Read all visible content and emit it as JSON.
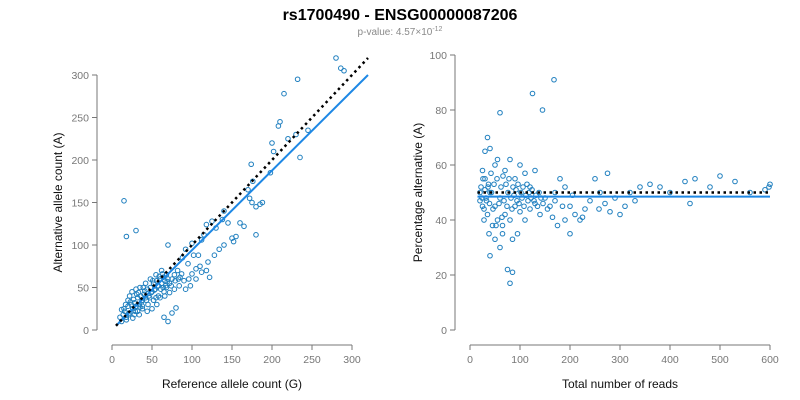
{
  "title": "rs1700490 - ENSG00000087206",
  "subtitle_prefix": "p-value: 4.57×10",
  "subtitle_exp": "-12",
  "colors": {
    "point": "#1f7fbf",
    "fit": "#1e88e5",
    "reference": "#000000"
  },
  "chart_data": [
    {
      "type": "scatter",
      "xlabel": "Reference allele count (G)",
      "ylabel": "Alternative allele count (A)",
      "xlim": [
        0,
        320
      ],
      "ylim": [
        0,
        300
      ],
      "xticks": [
        0,
        50,
        100,
        150,
        200,
        250,
        300
      ],
      "yticks": [
        0,
        50,
        100,
        150,
        200,
        250,
        300
      ],
      "fit_line": {
        "style": "solid",
        "points": [
          [
            5,
            5
          ],
          [
            320,
            300
          ]
        ]
      },
      "reference_line": {
        "style": "dotted",
        "points": [
          [
            5,
            5
          ],
          [
            320,
            320
          ]
        ]
      },
      "points": [
        [
          15,
          152
        ],
        [
          18,
          110
        ],
        [
          30,
          117
        ],
        [
          70,
          100
        ],
        [
          70,
          10
        ],
        [
          80,
          26
        ],
        [
          75,
          20
        ],
        [
          65,
          15
        ],
        [
          88,
          85
        ],
        [
          92,
          95
        ],
        [
          95,
          78
        ],
        [
          100,
          102
        ],
        [
          102,
          88
        ],
        [
          108,
          88
        ],
        [
          112,
          106
        ],
        [
          115,
          112
        ],
        [
          118,
          124
        ],
        [
          125,
          128
        ],
        [
          130,
          120
        ],
        [
          138,
          130
        ],
        [
          140,
          140
        ],
        [
          145,
          126
        ],
        [
          150,
          108
        ],
        [
          152,
          104
        ],
        [
          155,
          110
        ],
        [
          160,
          126
        ],
        [
          165,
          122
        ],
        [
          170,
          165
        ],
        [
          172,
          155
        ],
        [
          174,
          195
        ],
        [
          175,
          150
        ],
        [
          176,
          175
        ],
        [
          180,
          145
        ],
        [
          185,
          148
        ],
        [
          188,
          150
        ],
        [
          180,
          112
        ],
        [
          198,
          185
        ],
        [
          200,
          220
        ],
        [
          202,
          210
        ],
        [
          208,
          240
        ],
        [
          210,
          245
        ],
        [
          215,
          278
        ],
        [
          220,
          225
        ],
        [
          230,
          230
        ],
        [
          232,
          295
        ],
        [
          235,
          203
        ],
        [
          245,
          235
        ],
        [
          280,
          320
        ],
        [
          286,
          308
        ],
        [
          290,
          305
        ],
        [
          12,
          10
        ],
        [
          14,
          18
        ],
        [
          16,
          22
        ],
        [
          18,
          15
        ],
        [
          20,
          28
        ],
        [
          22,
          20
        ],
        [
          24,
          30
        ],
        [
          26,
          25
        ],
        [
          28,
          32
        ],
        [
          30,
          28
        ],
        [
          32,
          38
        ],
        [
          34,
          30
        ],
        [
          36,
          40
        ],
        [
          38,
          35
        ],
        [
          40,
          42
        ],
        [
          42,
          38
        ],
        [
          44,
          48
        ],
        [
          46,
          40
        ],
        [
          48,
          50
        ],
        [
          50,
          45
        ],
        [
          52,
          55
        ],
        [
          54,
          48
        ],
        [
          56,
          58
        ],
        [
          58,
          52
        ],
        [
          60,
          60
        ],
        [
          62,
          55
        ],
        [
          64,
          62
        ],
        [
          66,
          58
        ],
        [
          68,
          65
        ],
        [
          70,
          60
        ],
        [
          20,
          35
        ],
        [
          25,
          45
        ],
        [
          28,
          18
        ],
        [
          32,
          22
        ],
        [
          35,
          50
        ],
        [
          38,
          25
        ],
        [
          42,
          55
        ],
        [
          45,
          30
        ],
        [
          48,
          60
        ],
        [
          52,
          35
        ],
        [
          55,
          65
        ],
        [
          58,
          40
        ],
        [
          62,
          70
        ],
        [
          65,
          45
        ],
        [
          68,
          50
        ],
        [
          72,
          55
        ],
        [
          75,
          60
        ],
        [
          78,
          65
        ],
        [
          82,
          70
        ],
        [
          85,
          62
        ],
        [
          15,
          25
        ],
        [
          18,
          12
        ],
        [
          22,
          40
        ],
        [
          26,
          14
        ],
        [
          30,
          48
        ],
        [
          34,
          18
        ],
        [
          38,
          28
        ],
        [
          44,
          22
        ],
        [
          50,
          25
        ],
        [
          56,
          30
        ],
        [
          60,
          38
        ],
        [
          66,
          40
        ],
        [
          72,
          44
        ],
        [
          78,
          48
        ],
        [
          84,
          52
        ],
        [
          90,
          58
        ],
        [
          96,
          60
        ],
        [
          100,
          66
        ],
        [
          105,
          72
        ],
        [
          110,
          75
        ],
        [
          120,
          80
        ],
        [
          128,
          88
        ],
        [
          134,
          95
        ],
        [
          140,
          100
        ],
        [
          122,
          62
        ],
        [
          118,
          70
        ],
        [
          112,
          68
        ],
        [
          105,
          60
        ],
        [
          98,
          52
        ],
        [
          92,
          48
        ],
        [
          27,
          36
        ],
        [
          33,
          44
        ],
        [
          37,
          33
        ],
        [
          41,
          46
        ],
        [
          47,
          38
        ],
        [
          53,
          47
        ],
        [
          57,
          52
        ],
        [
          61,
          48
        ],
        [
          63,
          66
        ],
        [
          67,
          52
        ],
        [
          10,
          15
        ],
        [
          12,
          24
        ],
        [
          17,
          30
        ],
        [
          21,
          18
        ],
        [
          23,
          33
        ],
        [
          29,
          22
        ],
        [
          31,
          42
        ],
        [
          35,
          27
        ],
        [
          39,
          50
        ],
        [
          43,
          35
        ],
        [
          49,
          44
        ],
        [
          51,
          58
        ],
        [
          55,
          38
        ],
        [
          59,
          63
        ],
        [
          64,
          50
        ],
        [
          69,
          57
        ],
        [
          74,
          52
        ],
        [
          79,
          58
        ],
        [
          83,
          60
        ],
        [
          87,
          66
        ]
      ]
    },
    {
      "type": "scatter",
      "xlabel": "Total number of reads",
      "ylabel": "Percentage alternative (A)",
      "xlim": [
        0,
        600
      ],
      "ylim": [
        0,
        100
      ],
      "xticks": [
        0,
        100,
        200,
        300,
        400,
        500,
        600
      ],
      "yticks": [
        0,
        20,
        40,
        60,
        80,
        100
      ],
      "fit_line": {
        "style": "solid",
        "points": [
          [
            15,
            48.5
          ],
          [
            600,
            48.5
          ]
        ]
      },
      "reference_line": {
        "style": "dotted",
        "points": [
          [
            15,
            50
          ],
          [
            600,
            50
          ]
        ]
      },
      "points": [
        [
          125,
          86
        ],
        [
          168,
          91
        ],
        [
          145,
          80
        ],
        [
          60,
          79
        ],
        [
          35,
          70
        ],
        [
          30,
          65
        ],
        [
          40,
          66
        ],
        [
          50,
          60
        ],
        [
          55,
          62
        ],
        [
          70,
          58
        ],
        [
          80,
          62
        ],
        [
          90,
          55
        ],
        [
          100,
          60
        ],
        [
          110,
          57
        ],
        [
          120,
          52
        ],
        [
          130,
          58
        ],
        [
          75,
          22
        ],
        [
          85,
          21
        ],
        [
          80,
          17
        ],
        [
          40,
          27
        ],
        [
          50,
          33
        ],
        [
          60,
          30
        ],
        [
          65,
          35
        ],
        [
          55,
          40
        ],
        [
          45,
          38
        ],
        [
          35,
          42
        ],
        [
          25,
          45
        ],
        [
          20,
          50
        ],
        [
          30,
          55
        ],
        [
          40,
          50
        ],
        [
          50,
          45
        ],
        [
          60,
          48
        ],
        [
          70,
          42
        ],
        [
          80,
          40
        ],
        [
          90,
          45
        ],
        [
          100,
          43
        ],
        [
          110,
          40
        ],
        [
          120,
          44
        ],
        [
          130,
          46
        ],
        [
          140,
          42
        ],
        [
          150,
          48
        ],
        [
          160,
          45
        ],
        [
          170,
          50
        ],
        [
          180,
          55
        ],
        [
          190,
          52
        ],
        [
          200,
          45
        ],
        [
          210,
          42
        ],
        [
          220,
          40
        ],
        [
          230,
          44
        ],
        [
          240,
          47
        ],
        [
          250,
          55
        ],
        [
          260,
          50
        ],
        [
          270,
          46
        ],
        [
          280,
          43
        ],
        [
          290,
          48
        ],
        [
          300,
          42
        ],
        [
          310,
          45
        ],
        [
          320,
          50
        ],
        [
          330,
          47
        ],
        [
          340,
          52
        ],
        [
          360,
          53
        ],
        [
          380,
          52
        ],
        [
          400,
          50
        ],
        [
          430,
          54
        ],
        [
          440,
          46
        ],
        [
          450,
          55
        ],
        [
          480,
          52
        ],
        [
          500,
          56
        ],
        [
          530,
          54
        ],
        [
          560,
          50
        ],
        [
          590,
          51
        ],
        [
          600,
          53
        ],
        [
          598,
          52
        ],
        [
          275,
          57
        ],
        [
          205,
          49
        ],
        [
          225,
          41
        ],
        [
          258,
          44
        ],
        [
          200,
          35
        ],
        [
          170,
          47
        ],
        [
          185,
          45
        ],
        [
          25,
          58
        ],
        [
          28,
          40
        ],
        [
          32,
          48
        ],
        [
          36,
          52
        ],
        [
          38,
          35
        ],
        [
          42,
          57
        ],
        [
          46,
          44
        ],
        [
          48,
          53
        ],
        [
          52,
          38
        ],
        [
          54,
          55
        ],
        [
          58,
          46
        ],
        [
          62,
          52
        ],
        [
          64,
          41
        ],
        [
          66,
          56
        ],
        [
          68,
          47
        ],
        [
          72,
          53
        ],
        [
          74,
          45
        ],
        [
          76,
          50
        ],
        [
          78,
          55
        ],
        [
          82,
          48
        ],
        [
          84,
          44
        ],
        [
          86,
          52
        ],
        [
          88,
          49
        ],
        [
          92,
          51
        ],
        [
          94,
          47
        ],
        [
          96,
          53
        ],
        [
          98,
          46
        ],
        [
          102,
          50
        ],
        [
          104,
          48
        ],
        [
          106,
          52
        ],
        [
          108,
          45
        ],
        [
          112,
          49
        ],
        [
          114,
          53
        ],
        [
          116,
          47
        ],
        [
          118,
          50
        ],
        [
          122,
          48
        ],
        [
          124,
          51
        ],
        [
          128,
          47
        ],
        [
          132,
          49
        ],
        [
          135,
          45
        ],
        [
          138,
          50
        ],
        [
          142,
          48
        ],
        [
          146,
          46
        ],
        [
          155,
          44
        ],
        [
          165,
          41
        ],
        [
          175,
          38
        ],
        [
          190,
          40
        ],
        [
          95,
          35
        ],
        [
          85,
          33
        ],
        [
          65,
          38
        ],
        [
          20,
          47
        ],
        [
          22,
          52
        ],
        [
          24,
          48
        ],
        [
          26,
          55
        ],
        [
          28,
          44
        ],
        [
          30,
          51
        ],
        [
          33,
          47
        ],
        [
          37,
          53
        ],
        [
          39,
          46
        ],
        [
          43,
          50
        ]
      ]
    }
  ]
}
